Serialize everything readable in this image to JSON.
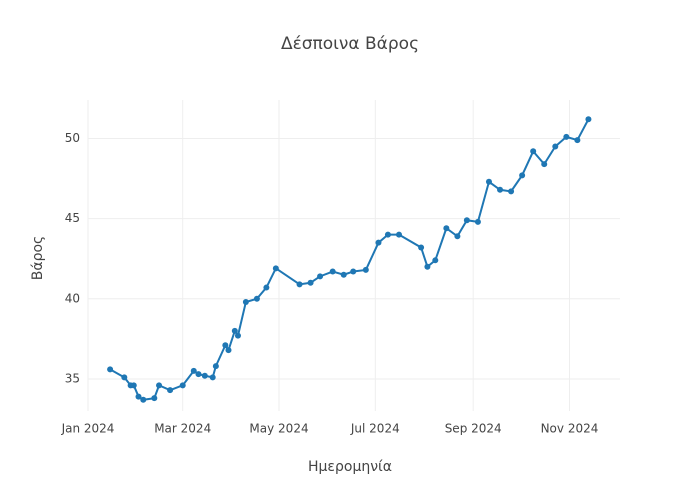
{
  "chart_data": {
    "type": "line",
    "title": "Δέσποινα Βάρος",
    "x_label": "Ημερομηνία",
    "y_label": "Βάρος",
    "x": [
      "2024-01-15",
      "2024-01-24",
      "2024-01-28",
      "2024-01-30",
      "2024-02-02",
      "2024-02-05",
      "2024-02-12",
      "2024-02-15",
      "2024-02-22",
      "2024-03-01",
      "2024-03-08",
      "2024-03-11",
      "2024-03-15",
      "2024-03-20",
      "2024-03-22",
      "2024-03-28",
      "2024-03-30",
      "2024-04-03",
      "2024-04-05",
      "2024-04-10",
      "2024-04-17",
      "2024-04-23",
      "2024-04-29",
      "2024-05-14",
      "2024-05-21",
      "2024-05-27",
      "2024-06-04",
      "2024-06-11",
      "2024-06-17",
      "2024-06-25",
      "2024-07-03",
      "2024-07-09",
      "2024-07-16",
      "2024-07-30",
      "2024-08-03",
      "2024-08-08",
      "2024-08-15",
      "2024-08-22",
      "2024-08-28",
      "2024-09-04",
      "2024-09-11",
      "2024-09-18",
      "2024-09-25",
      "2024-10-02",
      "2024-10-09",
      "2024-10-16",
      "2024-10-23",
      "2024-10-30",
      "2024-11-06",
      "2024-11-13"
    ],
    "series": [
      {
        "name": "Βάρος",
        "color": "#1f77b4",
        "values": [
          35.6,
          35.1,
          34.6,
          34.6,
          33.9,
          33.7,
          33.8,
          34.6,
          34.3,
          34.6,
          35.5,
          35.3,
          35.2,
          35.1,
          35.8,
          37.1,
          36.8,
          38.0,
          37.7,
          39.8,
          40.0,
          40.7,
          41.9,
          40.9,
          41.0,
          41.4,
          41.7,
          41.5,
          41.7,
          41.8,
          43.5,
          44.0,
          44.0,
          43.2,
          42.0,
          42.4,
          44.4,
          43.9,
          44.9,
          44.8,
          47.3,
          46.8,
          46.7,
          47.7,
          49.2,
          48.4,
          49.5,
          50.1,
          49.9,
          51.2
        ]
      }
    ],
    "xlim": [
      "2024-01-01",
      "2024-12-03"
    ],
    "xticks": [
      {
        "value": "2024-01-01",
        "label": "Jan 2024"
      },
      {
        "value": "2024-03-01",
        "label": "Mar 2024"
      },
      {
        "value": "2024-05-01",
        "label": "May 2024"
      },
      {
        "value": "2024-07-01",
        "label": "Jul 2024"
      },
      {
        "value": "2024-09-01",
        "label": "Sep 2024"
      },
      {
        "value": "2024-11-01",
        "label": "Nov 2024"
      }
    ],
    "ylim": [
      33,
      52.4
    ],
    "yticks": [
      35,
      40,
      45,
      50
    ],
    "grid": true,
    "markers": true
  }
}
